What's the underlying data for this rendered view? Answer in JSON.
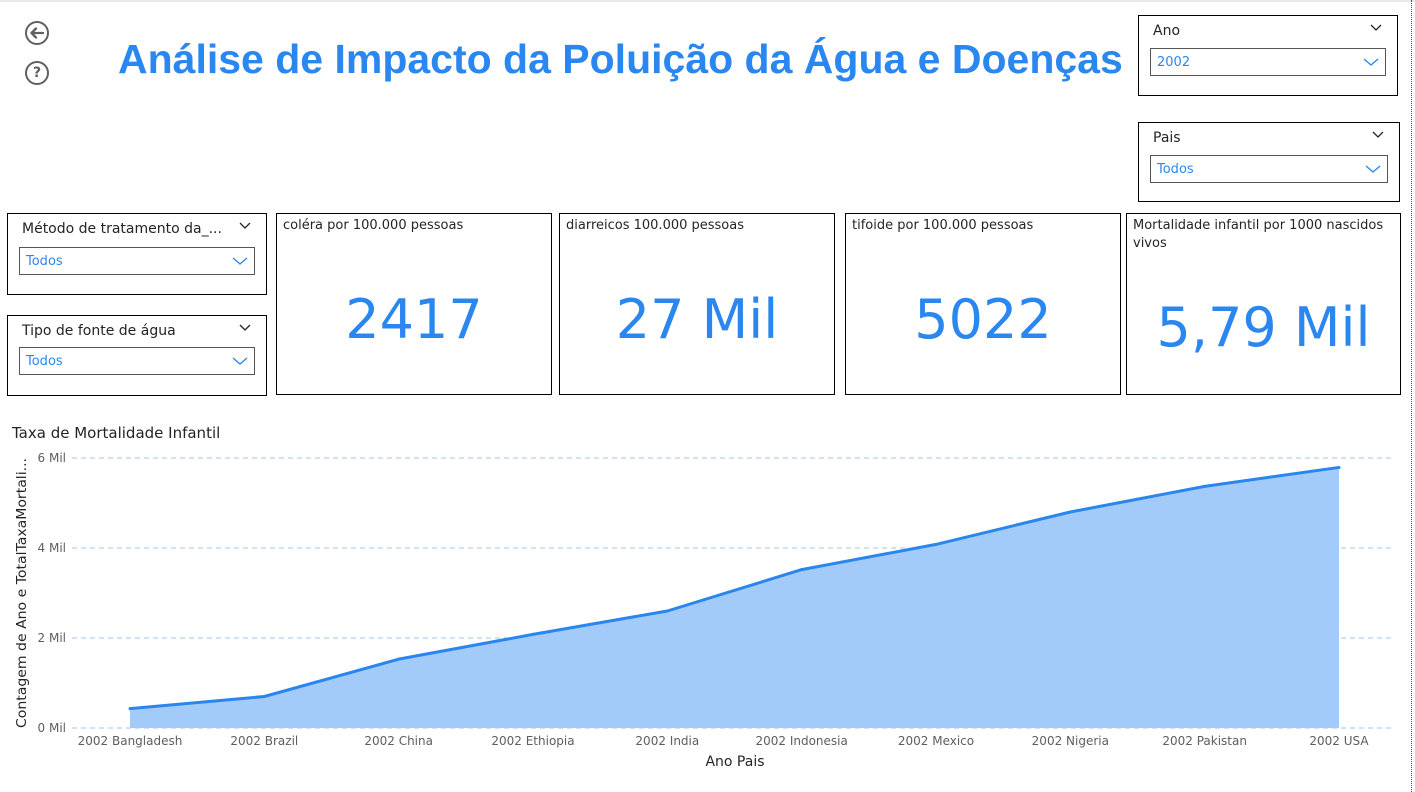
{
  "header": {
    "title": "Análise de Impacto da Poluição da Água e Doenças",
    "back_icon": "back-arrow-icon",
    "help_icon": "help-icon"
  },
  "slicers": {
    "ano": {
      "label": "Ano",
      "value": "2002"
    },
    "pais": {
      "label": "Pais",
      "value": "Todos"
    },
    "metodo": {
      "label": "Método de tratamento da_...",
      "value": "Todos"
    },
    "fonte": {
      "label": "Tipo de fonte de água",
      "value": "Todos"
    }
  },
  "cards": [
    {
      "label": "coléra por 100.000 pessoas",
      "value": "2417"
    },
    {
      "label": "diarreicos 100.000 pessoas",
      "value": "27 Mil"
    },
    {
      "label": "tifoide por 100.000 pessoas",
      "value": "5022"
    },
    {
      "label": "Mortalidade infantil por 1000 nascidos vivos",
      "value": "5,79 Mil"
    }
  ],
  "colors": {
    "accent": "#2b87f0",
    "area_fill": "#a3cbfa",
    "line": "#2a86ec",
    "grid": "#9fc5f0"
  },
  "chart_data": {
    "type": "area",
    "title": "Taxa de Mortalidade Infantil",
    "xlabel": "Ano Pais",
    "ylabel": "Contagem de Ano e TotalTaxaMortali...",
    "categories": [
      "2002 Bangladesh",
      "2002 Brazil",
      "2002 China",
      "2002 Ethiopia",
      "2002 India",
      "2002 Indonesia",
      "2002 Mexico",
      "2002 Nigeria",
      "2002 Pakistan",
      "2002 USA"
    ],
    "series": [
      {
        "values": [
          430,
          700,
          1530,
          2080,
          2600,
          3520,
          4080,
          4800,
          5370,
          5790
        ]
      }
    ],
    "ylim": [
      0,
      6000
    ],
    "yticks": [
      0,
      2000,
      4000,
      6000
    ],
    "ytick_labels": [
      "0 Mil",
      "2 Mil",
      "4 Mil",
      "6 Mil"
    ],
    "grid": true,
    "legend": "none"
  }
}
